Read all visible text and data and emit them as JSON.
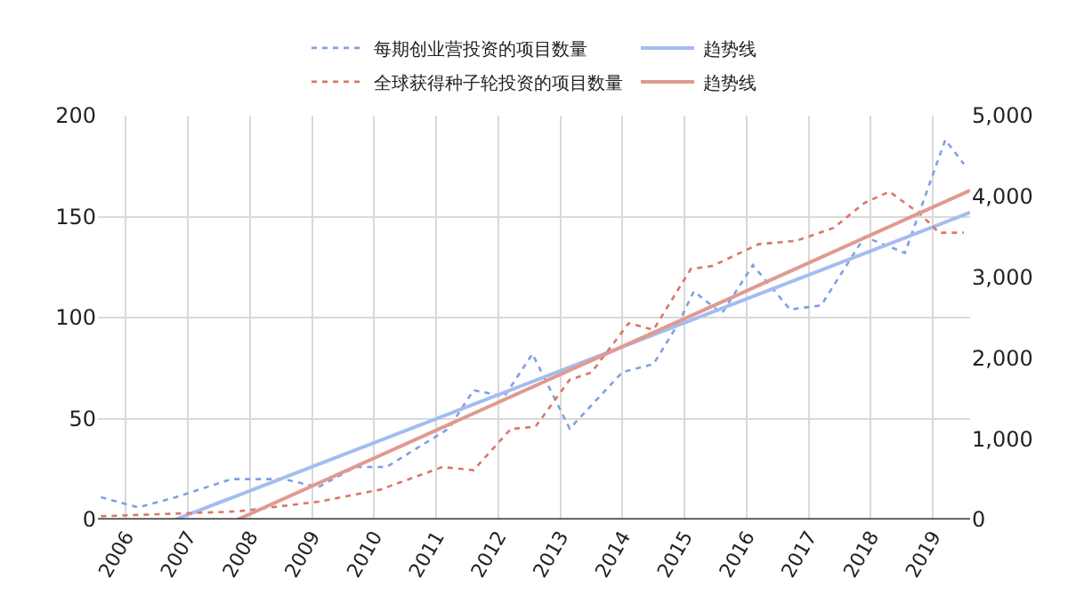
{
  "chart_data": {
    "type": "line",
    "xlim": [
      2005.55,
      2019.6
    ],
    "xticks": [
      2006,
      2007,
      2008,
      2009,
      2010,
      2011,
      2012,
      2013,
      2014,
      2015,
      2016,
      2017,
      2018,
      2019
    ],
    "ylim": [
      0,
      200
    ],
    "yticks": [
      0,
      50,
      100,
      150,
      200
    ],
    "y2lim": [
      0,
      5000
    ],
    "y2ticks": [
      0,
      {
        "value": 1000,
        "label": "1,000"
      },
      {
        "value": 2000,
        "label": "2,000"
      },
      {
        "value": 3000,
        "label": "3,000"
      },
      {
        "value": 4000,
        "label": "4,000"
      },
      {
        "value": 5000,
        "label": "5,000"
      }
    ],
    "grid": true,
    "legend": "top",
    "marker": "none",
    "series": [
      {
        "name": "每期创业营投资的项目数量",
        "color": "#7f9fe6",
        "line_style": "dotted",
        "x": [
          2005.6,
          2006.2,
          2006.8,
          2007.7,
          2008.55,
          2009.1,
          2009.7,
          2010.2,
          2011.2,
          2011.6,
          2012.1,
          2012.55,
          2013.15,
          2014.0,
          2014.5,
          2014.9,
          2015.15,
          2015.6,
          2016.1,
          2016.7,
          2017.2,
          2017.9,
          2018.55,
          2019.2,
          2019.5
        ],
        "values": [
          11,
          6,
          11,
          20,
          20,
          16,
          26,
          26,
          45,
          64,
          61,
          82,
          45,
          73,
          77,
          97,
          113,
          102,
          126,
          104,
          106,
          140,
          132,
          188,
          176
        ]
      },
      {
        "name": "趋势线",
        "color": "#a4bdf0",
        "line_style": "solid",
        "x": [
          2006.8,
          2019.6
        ],
        "values": [
          0,
          152
        ]
      },
      {
        "name": "全球获得种子轮投资的项目数量",
        "color": "#d9776a",
        "line_style": "dotted",
        "axis": "y2",
        "x": [
          2005.6,
          2007.8,
          2009.1,
          2010.1,
          2011.1,
          2011.6,
          2012.2,
          2012.6,
          2013.15,
          2013.5,
          2014.1,
          2014.5,
          2015.1,
          2015.45,
          2016.2,
          2016.8,
          2017.4,
          2017.9,
          2018.3,
          2018.8,
          2019.1,
          2019.5
        ],
        "values": [
          40,
          100,
          220,
          370,
          650,
          610,
          1120,
          1150,
          1730,
          1820,
          2430,
          2350,
          3100,
          3140,
          3410,
          3450,
          3610,
          3920,
          4060,
          3780,
          3550,
          3550
        ]
      },
      {
        "name": "趋势线",
        "color": "#e09a90",
        "line_style": "solid",
        "axis": "y2",
        "x": [
          2007.8,
          2019.6
        ],
        "values": [
          0,
          4075
        ]
      }
    ]
  }
}
